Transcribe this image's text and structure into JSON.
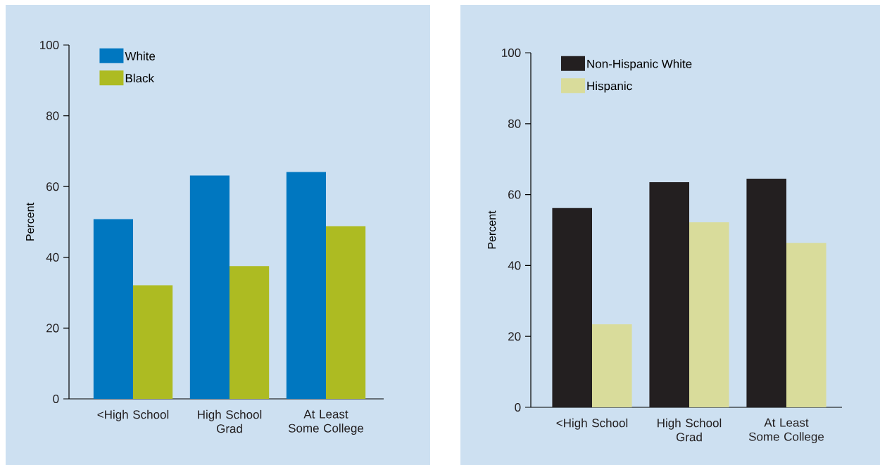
{
  "chart_data": [
    {
      "type": "bar",
      "ylabel": "Percent",
      "categories": [
        "<High School",
        "High School Grad",
        "At Least Some College"
      ],
      "series": [
        {
          "name": "White",
          "color": "#0077c0",
          "values": [
            50.8,
            63.1,
            64.1
          ]
        },
        {
          "name": "Black",
          "color": "#adbb22",
          "values": [
            32.1,
            37.5,
            48.8
          ]
        }
      ],
      "ylim": [
        0,
        100
      ],
      "yticks": [
        0,
        20,
        40,
        60,
        80,
        100
      ],
      "legend": "top left"
    },
    {
      "type": "bar",
      "ylabel": "Percent",
      "categories": [
        "<High School",
        "High School Grad",
        "At Least Some College"
      ],
      "series": [
        {
          "name": "Non-Hispanic White",
          "color": "#231f20",
          "values": [
            56.2,
            63.5,
            64.5
          ]
        },
        {
          "name": "Hispanic",
          "color": "#d9dc9b",
          "values": [
            23.4,
            52.2,
            46.4
          ]
        }
      ],
      "ylim": [
        0,
        100
      ],
      "yticks": [
        0,
        20,
        40,
        60,
        80,
        100
      ],
      "legend": "top left"
    }
  ]
}
